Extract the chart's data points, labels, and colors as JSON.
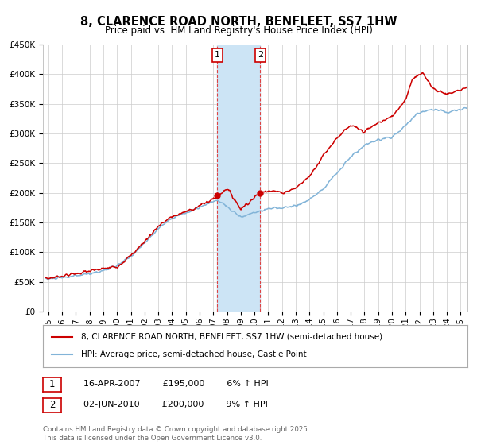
{
  "title": "8, CLARENCE ROAD NORTH, BENFLEET, SS7 1HW",
  "subtitle": "Price paid vs. HM Land Registry's House Price Index (HPI)",
  "red_label": "8, CLARENCE ROAD NORTH, BENFLEET, SS7 1HW (semi-detached house)",
  "blue_label": "HPI: Average price, semi-detached house, Castle Point",
  "annotation1": {
    "label": "1",
    "date": "16-APR-2007",
    "price": "£195,000",
    "hpi": "6% ↑ HPI",
    "year": 2007.3
  },
  "annotation2": {
    "label": "2",
    "date": "02-JUN-2010",
    "price": "£200,000",
    "hpi": "9% ↑ HPI",
    "year": 2010.42
  },
  "shade_color": "#cce4f5",
  "red_color": "#cc0000",
  "blue_color": "#82b4d8",
  "background_color": "#ffffff",
  "grid_color": "#cccccc",
  "ylim": [
    0,
    450000
  ],
  "yticks": [
    0,
    50000,
    100000,
    150000,
    200000,
    250000,
    300000,
    350000,
    400000,
    450000
  ],
  "ytick_labels": [
    "£0",
    "£50K",
    "£100K",
    "£150K",
    "£200K",
    "£250K",
    "£300K",
    "£350K",
    "£400K",
    "£450K"
  ],
  "xlim": [
    1994.6,
    2025.5
  ],
  "xticks": [
    1995,
    1996,
    1997,
    1998,
    1999,
    2000,
    2001,
    2002,
    2003,
    2004,
    2005,
    2006,
    2007,
    2008,
    2009,
    2010,
    2011,
    2012,
    2013,
    2014,
    2015,
    2016,
    2017,
    2018,
    2019,
    2020,
    2021,
    2022,
    2023,
    2024,
    2025
  ],
  "footnote1": "Contains HM Land Registry data © Crown copyright and database right 2025.",
  "footnote2": "This data is licensed under the Open Government Licence v3.0.",
  "dot1_value": 195000,
  "dot2_value": 200000,
  "dot1_year": 2007.3,
  "dot2_year": 2010.42
}
